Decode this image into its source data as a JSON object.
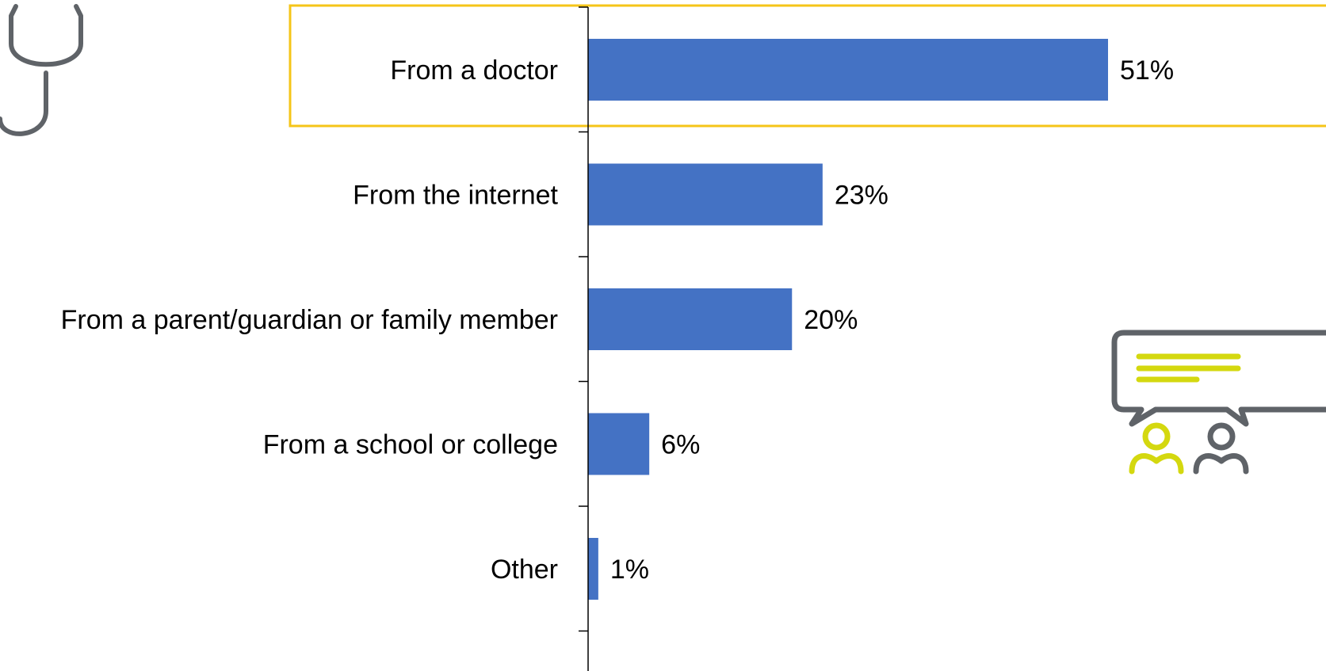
{
  "chart_data": {
    "type": "bar",
    "orientation": "horizontal",
    "categories": [
      "From a doctor",
      "From the internet",
      "From a parent/guardian or family member",
      "From a school or college",
      "Other"
    ],
    "values": [
      51,
      23,
      20,
      6,
      1
    ],
    "value_labels": [
      "51%",
      "23%",
      "20%",
      "6%",
      "1%"
    ],
    "unit": "%",
    "xlim": [
      0,
      60
    ],
    "grid": false,
    "legend": "none",
    "highlighted_category": "From a doctor"
  },
  "colors": {
    "bar": "#4472C4",
    "highlight_box": "#F5C518",
    "axis": "#000000",
    "icon_gray": "#5F6368",
    "icon_accent": "#D4D80F"
  },
  "icons": {
    "left": "stethoscope-icon",
    "right": "conversation-icon"
  }
}
